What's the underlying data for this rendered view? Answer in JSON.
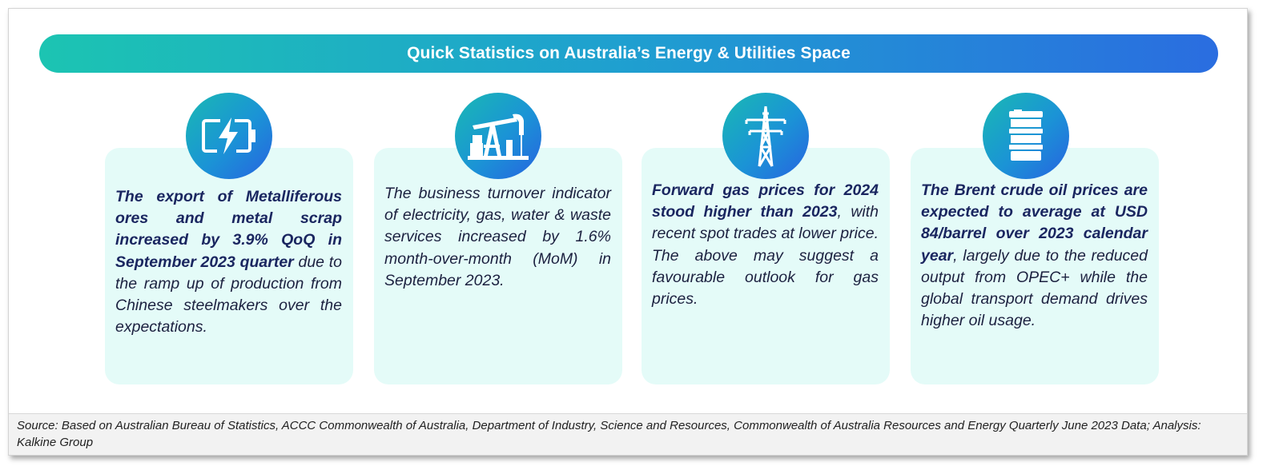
{
  "banner": {
    "title": "Quick Statistics on Australia’s Energy & Utilities Space"
  },
  "cards": [
    {
      "icon": "battery-charging-icon",
      "bold": "The export of Metalliferous ores and metal scrap increased by 3.9% QoQ in September 2023 quarter",
      "rest": " due to the ramp up of production from Chinese steelmakers over the expectations."
    },
    {
      "icon": "oil-pumpjack-icon",
      "bold": "",
      "rest": "The business turnover indicator of electricity, gas, water & waste services increased by 1.6% month-over-month (MoM) in September 2023."
    },
    {
      "icon": "power-pylon-icon",
      "bold": "Forward gas prices for 2024 stood higher than 2023",
      "rest": ", with recent spot trades at lower price. The above may suggest a favourable outlook for gas prices."
    },
    {
      "icon": "oil-barrel-icon",
      "bold": "The Brent crude oil prices are expected to average at USD 84/barrel over 2023 calendar year",
      "rest": ", largely due to the reduced output from OPEC+ while the global transport demand drives higher oil usage."
    }
  ],
  "colors": {
    "banner_start": "#1cc4b2",
    "banner_end": "#2a6de0",
    "card_bg": "#e4fbf8",
    "text": "#1c2140"
  },
  "source": {
    "text": "Source: Based on Australian Bureau of Statistics, ACCC Commonwealth of Australia, Department of Industry, Science and Resources, Commonwealth of Australia Resources and Energy Quarterly June 2023 Data; Analysis: Kalkine Group"
  }
}
